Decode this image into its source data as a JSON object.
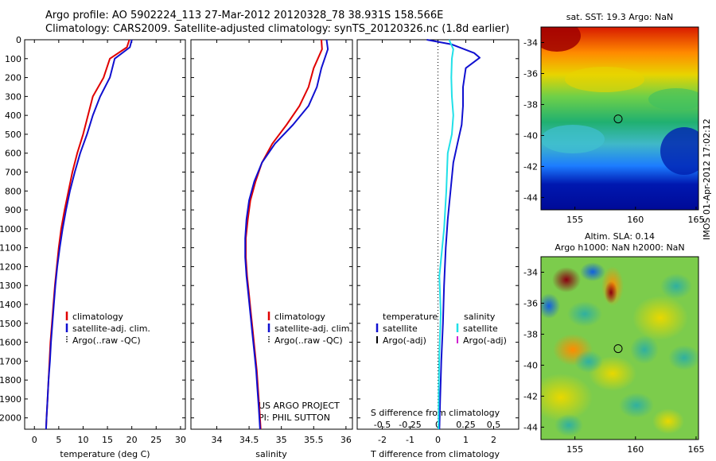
{
  "header": {
    "line1": "Argo profile: AO 5902224_113 27-Mar-2012 20120328_78 38.931S 158.566E",
    "line2": "Climatology: CARS2009. Satellite-adjusted climatology: synTS_20120326.nc (1.8d earlier)"
  },
  "side_label": "IMOS 01-Apr-2012 17:02:12",
  "colors": {
    "climatology": "#e00000",
    "satellite_adj": "#1010d0",
    "argo": "#000000",
    "salinity_diff": "#20e0e8",
    "argo_adj_salinity": "#d020d0"
  },
  "chart_data": [
    {
      "type": "line",
      "name": "temperature-profile",
      "xlabel": "temperature (deg C)",
      "ylabel": "",
      "xlim": [
        -2,
        31
      ],
      "ylim": [
        2060,
        0
      ],
      "y_reversed": true,
      "x_ticks": [
        0,
        5,
        10,
        15,
        20,
        25,
        30
      ],
      "y_ticks": [
        0,
        100,
        200,
        300,
        400,
        500,
        600,
        700,
        800,
        900,
        1000,
        1100,
        1200,
        1300,
        1400,
        1500,
        1600,
        1700,
        1800,
        1900,
        2000
      ],
      "legend": {
        "position": "lower-center",
        "entries": [
          "climatology",
          "satellite-adj. clim.",
          "Argo(..raw -QC)"
        ]
      },
      "series": [
        {
          "name": "climatology",
          "color": "#e00000",
          "points": [
            [
              19.5,
              0
            ],
            [
              19.0,
              40
            ],
            [
              15.5,
              100
            ],
            [
              14.2,
              200
            ],
            [
              12.0,
              300
            ],
            [
              11.0,
              400
            ],
            [
              10.0,
              500
            ],
            [
              8.8,
              600
            ],
            [
              7.8,
              700
            ],
            [
              7.0,
              800
            ],
            [
              6.2,
              900
            ],
            [
              5.5,
              1000
            ],
            [
              5.0,
              1100
            ],
            [
              4.6,
              1200
            ],
            [
              4.2,
              1300
            ],
            [
              3.9,
              1400
            ],
            [
              3.6,
              1500
            ],
            [
              3.3,
              1600
            ],
            [
              3.1,
              1700
            ],
            [
              2.9,
              1800
            ],
            [
              2.7,
              1900
            ],
            [
              2.5,
              2000
            ],
            [
              2.4,
              2060
            ]
          ]
        },
        {
          "name": "satellite-adj. clim.",
          "color": "#1010d0",
          "points": [
            [
              20.0,
              0
            ],
            [
              19.6,
              40
            ],
            [
              16.5,
              100
            ],
            [
              15.5,
              200
            ],
            [
              13.5,
              300
            ],
            [
              12.0,
              400
            ],
            [
              10.8,
              500
            ],
            [
              9.4,
              600
            ],
            [
              8.3,
              700
            ],
            [
              7.3,
              800
            ],
            [
              6.5,
              900
            ],
            [
              5.8,
              1000
            ],
            [
              5.2,
              1100
            ],
            [
              4.7,
              1200
            ],
            [
              4.3,
              1300
            ],
            [
              4.0,
              1400
            ],
            [
              3.7,
              1500
            ],
            [
              3.4,
              1600
            ],
            [
              3.2,
              1700
            ],
            [
              2.9,
              1800
            ],
            [
              2.7,
              1900
            ],
            [
              2.5,
              2000
            ],
            [
              2.4,
              2060
            ]
          ]
        },
        {
          "name": "Argo(..raw -QC)",
          "color": "#000000",
          "points": []
        }
      ]
    },
    {
      "type": "line",
      "name": "salinity-profile",
      "xlabel": "salinity",
      "ylabel": "",
      "xlim": [
        33.6,
        36.1
      ],
      "ylim": [
        2060,
        0
      ],
      "y_reversed": true,
      "x_ticks": [
        34,
        34.5,
        35,
        35.5,
        36
      ],
      "legend": {
        "position": "lower-center",
        "entries": [
          "climatology",
          "satellite-adj. clim.",
          "Argo(..raw -QC)"
        ]
      },
      "annotations": [
        "US ARGO PROJECT",
        "PI: PHIL SUTTON"
      ],
      "series": [
        {
          "name": "climatology",
          "color": "#e00000",
          "points": [
            [
              35.62,
              0
            ],
            [
              35.63,
              50
            ],
            [
              35.5,
              150
            ],
            [
              35.42,
              250
            ],
            [
              35.28,
              350
            ],
            [
              35.08,
              450
            ],
            [
              34.86,
              550
            ],
            [
              34.7,
              650
            ],
            [
              34.6,
              750
            ],
            [
              34.52,
              850
            ],
            [
              34.48,
              950
            ],
            [
              34.45,
              1050
            ],
            [
              34.45,
              1150
            ],
            [
              34.47,
              1250
            ],
            [
              34.5,
              1350
            ],
            [
              34.53,
              1450
            ],
            [
              34.56,
              1550
            ],
            [
              34.59,
              1650
            ],
            [
              34.62,
              1750
            ],
            [
              34.64,
              1850
            ],
            [
              34.66,
              1950
            ],
            [
              34.68,
              2060
            ]
          ]
        },
        {
          "name": "satellite-adj. clim.",
          "color": "#1010d0",
          "points": [
            [
              35.7,
              0
            ],
            [
              35.72,
              50
            ],
            [
              35.62,
              150
            ],
            [
              35.55,
              250
            ],
            [
              35.42,
              350
            ],
            [
              35.18,
              450
            ],
            [
              34.9,
              550
            ],
            [
              34.7,
              650
            ],
            [
              34.58,
              750
            ],
            [
              34.5,
              850
            ],
            [
              34.46,
              950
            ],
            [
              34.44,
              1050
            ],
            [
              34.44,
              1150
            ],
            [
              34.46,
              1250
            ],
            [
              34.49,
              1350
            ],
            [
              34.52,
              1450
            ],
            [
              34.55,
              1550
            ],
            [
              34.58,
              1650
            ],
            [
              34.61,
              1750
            ],
            [
              34.63,
              1850
            ],
            [
              34.65,
              1950
            ],
            [
              34.67,
              2060
            ]
          ]
        },
        {
          "name": "Argo(..raw -QC)",
          "color": "#000000",
          "points": []
        }
      ]
    },
    {
      "type": "line",
      "name": "difference-profile",
      "xlabel": "T difference from climatology",
      "xlabel_top": "S difference from climatology",
      "ylabel": "",
      "xlim": [
        -2.9,
        2.9
      ],
      "ylim": [
        2060,
        0
      ],
      "y_reversed": true,
      "x_ticks": [
        -2,
        -1,
        0,
        1,
        2
      ],
      "x_tick_labels_top": [
        "-0.5",
        "-0.25",
        "0",
        "0.25",
        "0.5"
      ],
      "legend": {
        "position": "lower-center",
        "temperature_title": "temperature",
        "salinity_title": "salinity",
        "entries": [
          "satellite",
          "Argo(-adj)",
          "satellite",
          "Argo(-adj)"
        ]
      },
      "series": [
        {
          "name": "satellite",
          "group": "temperature",
          "color": "#1010d0",
          "points": [
            [
              -0.4,
              0
            ],
            [
              0.5,
              25
            ],
            [
              1.3,
              70
            ],
            [
              1.5,
              95
            ],
            [
              1.0,
              150
            ],
            [
              0.9,
              250
            ],
            [
              0.9,
              350
            ],
            [
              0.85,
              450
            ],
            [
              0.7,
              550
            ],
            [
              0.55,
              650
            ],
            [
              0.45,
              800
            ],
            [
              0.35,
              950
            ],
            [
              0.28,
              1100
            ],
            [
              0.22,
              1300
            ],
            [
              0.18,
              1500
            ],
            [
              0.12,
              1700
            ],
            [
              0.08,
              1900
            ],
            [
              0.05,
              2060
            ]
          ]
        },
        {
          "name": "satellite",
          "group": "salinity",
          "color": "#20e0e8",
          "points": [
            [
              0.4,
              0
            ],
            [
              0.55,
              50
            ],
            [
              0.5,
              100
            ],
            [
              0.48,
              200
            ],
            [
              0.5,
              300
            ],
            [
              0.55,
              400
            ],
            [
              0.5,
              500
            ],
            [
              0.35,
              600
            ],
            [
              0.3,
              800
            ],
            [
              0.22,
              1000
            ],
            [
              0.05,
              1250
            ],
            [
              0.1,
              1450
            ],
            [
              0.05,
              1650
            ],
            [
              0.03,
              1850
            ],
            [
              0.02,
              2060
            ]
          ]
        }
      ]
    },
    {
      "type": "heatmap",
      "name": "sst-map",
      "title": "sat. SST: 19.3 Argo: NaN",
      "xlim": [
        152.2,
        165.2
      ],
      "ylim": [
        -44.8,
        -33
      ],
      "x_ticks": [
        155,
        160,
        165
      ],
      "y_ticks": [
        -34,
        -36,
        -38,
        -40,
        -42,
        -44
      ],
      "marker": {
        "lon": 158.566,
        "lat": -38.931
      }
    },
    {
      "type": "heatmap",
      "name": "sla-map",
      "title": "Altim. SLA: 0.14",
      "subtitle": "Argo h1000: NaN h2000: NaN",
      "xlim": [
        152.2,
        165.2
      ],
      "ylim": [
        -44.8,
        -33
      ],
      "x_ticks": [
        155,
        160,
        165
      ],
      "y_ticks": [
        -34,
        -36,
        -38,
        -40,
        -42,
        -44
      ],
      "marker": {
        "lon": 158.566,
        "lat": -38.931
      }
    }
  ]
}
